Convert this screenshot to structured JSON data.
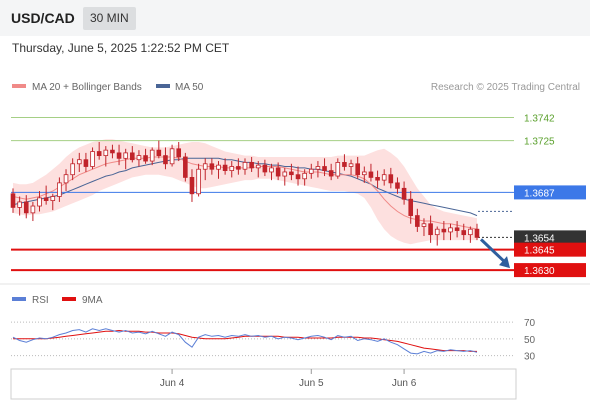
{
  "header": {
    "symbol": "USD/CAD",
    "timeframe": "30 MIN",
    "timestamp": "Thursday, June 5, 2025 1:22:52 PM CET"
  },
  "legend": {
    "ma20": "MA 20 + Bollinger Bands",
    "ma50": "MA 50",
    "credit": "Research © 2025 Trading Central"
  },
  "rsi_legend": {
    "rsi": "RSI",
    "ma9": "9MA"
  },
  "colors": {
    "candle": "#c0232a",
    "ma20": "#f08a88",
    "band": "#fde0df",
    "ma50": "#4a6596",
    "green_level": "#a5cf85",
    "blue_level": "#3c78e8",
    "red_level": "#e01010",
    "rsi": "#5b7fd6",
    "ma9": "#e01010",
    "arrow": "#2f5f9e"
  },
  "chart_data": {
    "type": "candlestick",
    "candles": [
      [
        1.3686,
        1.369,
        1.3672,
        1.3676
      ],
      [
        1.3676,
        1.3684,
        1.367,
        1.368
      ],
      [
        1.368,
        1.3685,
        1.3668,
        1.3672
      ],
      [
        1.3672,
        1.368,
        1.3666,
        1.3677
      ],
      [
        1.3677,
        1.3688,
        1.3673,
        1.3683
      ],
      [
        1.3683,
        1.3692,
        1.3678,
        1.3681
      ],
      [
        1.3681,
        1.3686,
        1.3674,
        1.3684
      ],
      [
        1.3684,
        1.3698,
        1.368,
        1.3694
      ],
      [
        1.3694,
        1.3704,
        1.3688,
        1.37
      ],
      [
        1.37,
        1.3712,
        1.3696,
        1.3708
      ],
      [
        1.3708,
        1.3716,
        1.3702,
        1.3711
      ],
      [
        1.3711,
        1.3716,
        1.3702,
        1.3706
      ],
      [
        1.3706,
        1.372,
        1.3704,
        1.3717
      ],
      [
        1.3717,
        1.3724,
        1.3711,
        1.3714
      ],
      [
        1.3714,
        1.3721,
        1.3706,
        1.3718
      ],
      [
        1.3718,
        1.3722,
        1.3712,
        1.3716
      ],
      [
        1.3716,
        1.3722,
        1.3707,
        1.3712
      ],
      [
        1.3712,
        1.3719,
        1.3704,
        1.3716
      ],
      [
        1.3716,
        1.3721,
        1.3709,
        1.3711
      ],
      [
        1.3711,
        1.3718,
        1.3706,
        1.3714
      ],
      [
        1.3714,
        1.3719,
        1.3708,
        1.371
      ],
      [
        1.371,
        1.372,
        1.3707,
        1.3718
      ],
      [
        1.3718,
        1.3725,
        1.3712,
        1.3714
      ],
      [
        1.3714,
        1.372,
        1.3704,
        1.3708
      ],
      [
        1.3708,
        1.3722,
        1.3706,
        1.3719
      ],
      [
        1.3719,
        1.3724,
        1.371,
        1.3713
      ],
      [
        1.3713,
        1.3716,
        1.3695,
        1.3698
      ],
      [
        1.3698,
        1.3704,
        1.368,
        1.3686
      ],
      [
        1.3686,
        1.3708,
        1.3684,
        1.3704
      ],
      [
        1.3704,
        1.3712,
        1.3696,
        1.3708
      ],
      [
        1.3708,
        1.3712,
        1.37,
        1.3704
      ],
      [
        1.3704,
        1.371,
        1.3697,
        1.3707
      ],
      [
        1.3707,
        1.3712,
        1.37,
        1.3703
      ],
      [
        1.3703,
        1.371,
        1.3698,
        1.3706
      ],
      [
        1.3706,
        1.3712,
        1.37,
        1.3704
      ],
      [
        1.3704,
        1.3712,
        1.37,
        1.3709
      ],
      [
        1.3709,
        1.3713,
        1.3702,
        1.3705
      ],
      [
        1.3705,
        1.371,
        1.3698,
        1.3707
      ],
      [
        1.3707,
        1.3711,
        1.3699,
        1.3702
      ],
      [
        1.3702,
        1.3708,
        1.3696,
        1.3705
      ],
      [
        1.3705,
        1.3709,
        1.3696,
        1.3699
      ],
      [
        1.3699,
        1.3705,
        1.3692,
        1.3702
      ],
      [
        1.3702,
        1.3708,
        1.3696,
        1.37
      ],
      [
        1.37,
        1.3706,
        1.3692,
        1.3697
      ],
      [
        1.3697,
        1.3704,
        1.3692,
        1.3701
      ],
      [
        1.3701,
        1.3708,
        1.3697,
        1.3704
      ],
      [
        1.3704,
        1.371,
        1.3698,
        1.3706
      ],
      [
        1.3706,
        1.3712,
        1.3699,
        1.3703
      ],
      [
        1.3703,
        1.3708,
        1.3696,
        1.3699
      ],
      [
        1.3699,
        1.3712,
        1.3697,
        1.3709
      ],
      [
        1.3709,
        1.3715,
        1.3703,
        1.3706
      ],
      [
        1.3706,
        1.3711,
        1.37,
        1.3708
      ],
      [
        1.3708,
        1.3713,
        1.3697,
        1.37
      ],
      [
        1.37,
        1.3706,
        1.3694,
        1.3702
      ],
      [
        1.3702,
        1.3708,
        1.3695,
        1.3698
      ],
      [
        1.3698,
        1.3703,
        1.369,
        1.3696
      ],
      [
        1.3696,
        1.3704,
        1.3692,
        1.37
      ],
      [
        1.37,
        1.3705,
        1.369,
        1.3694
      ],
      [
        1.3694,
        1.3698,
        1.3686,
        1.369
      ],
      [
        1.369,
        1.3695,
        1.3678,
        1.3682
      ],
      [
        1.3682,
        1.3688,
        1.3664,
        1.367
      ],
      [
        1.367,
        1.3675,
        1.3658,
        1.3662
      ],
      [
        1.3662,
        1.3668,
        1.3655,
        1.3664
      ],
      [
        1.3664,
        1.367,
        1.365,
        1.3656
      ],
      [
        1.3656,
        1.3662,
        1.3648,
        1.366
      ],
      [
        1.366,
        1.3666,
        1.3652,
        1.3658
      ],
      [
        1.3658,
        1.3664,
        1.3652,
        1.3661
      ],
      [
        1.3661,
        1.3666,
        1.3654,
        1.3659
      ],
      [
        1.3659,
        1.3664,
        1.3652,
        1.3656
      ],
      [
        1.3656,
        1.3662,
        1.365,
        1.366
      ],
      [
        1.366,
        1.3664,
        1.3652,
        1.3654
      ]
    ],
    "ma20": [
      1.3684,
      1.3683,
      1.3682,
      1.3683,
      1.3684,
      1.3686,
      1.3688,
      1.3691,
      1.3694,
      1.3697,
      1.37,
      1.3702,
      1.3704,
      1.3706,
      1.3708,
      1.3709,
      1.371,
      1.3711,
      1.3712,
      1.3712,
      1.3712,
      1.3713,
      1.3713,
      1.3713,
      1.3713,
      1.3712,
      1.371,
      1.3708,
      1.3707,
      1.3706,
      1.3706,
      1.3706,
      1.3705,
      1.3705,
      1.3705,
      1.3705,
      1.3705,
      1.3706,
      1.3706,
      1.3706,
      1.3706,
      1.3705,
      1.3704,
      1.3703,
      1.3702,
      1.3702,
      1.3702,
      1.3701,
      1.37,
      1.37,
      1.37,
      1.37,
      1.3699,
      1.3697,
      1.3693,
      1.3688,
      1.3682,
      1.3677,
      1.3673,
      1.367,
      1.3668,
      1.3667,
      1.3666,
      1.3666,
      1.3665,
      1.3664,
      1.3664,
      1.3663,
      1.3662,
      1.3661,
      1.366
    ],
    "band_upper": [
      1.3694,
      1.3693,
      1.3693,
      1.3694,
      1.3697,
      1.37,
      1.3704,
      1.3708,
      1.3713,
      1.3717,
      1.372,
      1.3722,
      1.3724,
      1.3725,
      1.3726,
      1.3726,
      1.3725,
      1.3724,
      1.3723,
      1.3722,
      1.3721,
      1.372,
      1.372,
      1.372,
      1.3721,
      1.3722,
      1.3723,
      1.3724,
      1.3724,
      1.3723,
      1.3721,
      1.3719,
      1.3717,
      1.3716,
      1.3715,
      1.3714,
      1.3714,
      1.3713,
      1.3713,
      1.3713,
      1.3713,
      1.3713,
      1.3713,
      1.3713,
      1.3713,
      1.3713,
      1.3713,
      1.3713,
      1.3713,
      1.3714,
      1.3714,
      1.3714,
      1.3714,
      1.3714,
      1.3716,
      1.3718,
      1.3719,
      1.3716,
      1.3712,
      1.3706,
      1.3698,
      1.369,
      1.3684,
      1.3678,
      1.3675,
      1.3673,
      1.3672,
      1.3671,
      1.367,
      1.3669,
      1.3668
    ],
    "band_lower": [
      1.3672,
      1.3671,
      1.367,
      1.3671,
      1.3671,
      1.3672,
      1.3673,
      1.3675,
      1.3677,
      1.3679,
      1.3681,
      1.3683,
      1.3685,
      1.3688,
      1.369,
      1.3692,
      1.3694,
      1.3696,
      1.3698,
      1.3699,
      1.37,
      1.37,
      1.37,
      1.3699,
      1.3698,
      1.3696,
      1.3694,
      1.3692,
      1.369,
      1.369,
      1.3691,
      1.3692,
      1.3693,
      1.3694,
      1.3695,
      1.3696,
      1.3696,
      1.3697,
      1.3697,
      1.3697,
      1.3696,
      1.3695,
      1.3694,
      1.3693,
      1.3692,
      1.3691,
      1.369,
      1.3689,
      1.3688,
      1.3688,
      1.3688,
      1.3687,
      1.3686,
      1.3683,
      1.3676,
      1.3667,
      1.366,
      1.3655,
      1.3652,
      1.365,
      1.3649,
      1.365,
      1.3651,
      1.3652,
      1.3652,
      1.3652,
      1.3652,
      1.3652,
      1.3652,
      1.3652,
      1.3652
    ],
    "ma50": [
      1.3678,
      1.3679,
      1.368,
      1.3681,
      1.3682,
      1.3683,
      1.3684,
      1.3685,
      1.3687,
      1.3689,
      1.3691,
      1.3693,
      1.3695,
      1.3697,
      1.3699,
      1.37,
      1.3702,
      1.3703,
      1.3705,
      1.3706,
      1.3707,
      1.3708,
      1.3709,
      1.371,
      1.3711,
      1.3711,
      1.3712,
      1.3712,
      1.3712,
      1.3712,
      1.3712,
      1.3712,
      1.3711,
      1.3711,
      1.371,
      1.3709,
      1.3709,
      1.3708,
      1.3708,
      1.3707,
      1.3707,
      1.3706,
      1.3706,
      1.3705,
      1.3705,
      1.3704,
      1.3704,
      1.3703,
      1.3702,
      1.3701,
      1.37,
      1.3699,
      1.3697,
      1.3695,
      1.3693,
      1.369,
      1.3688,
      1.3686,
      1.3684,
      1.3682,
      1.3681,
      1.368,
      1.3679,
      1.3678,
      1.3677,
      1.3676,
      1.3675,
      1.3674,
      1.3673,
      1.3672,
      1.367
    ],
    "ylim": [
      1.3622,
      1.3757
    ],
    "levels": [
      {
        "value": 1.3742,
        "label": "1.3742",
        "kind": "green"
      },
      {
        "value": 1.3725,
        "label": "1.3725",
        "kind": "green"
      },
      {
        "value": 1.3687,
        "label": "1.3687",
        "kind": "blue"
      },
      {
        "value": 1.3654,
        "label": "1.3654",
        "kind": "price"
      },
      {
        "value": 1.3645,
        "label": "1.3645",
        "kind": "red"
      },
      {
        "value": 1.363,
        "label": "1.3630",
        "kind": "red"
      }
    ],
    "forecast_arrow": {
      "from": 1.3654,
      "to": 1.363
    },
    "rsi_ylim": [
      20,
      82
    ],
    "rsi_ticks": [
      70,
      50,
      30
    ],
    "rsi": [
      52,
      48,
      46,
      49,
      51,
      50,
      52,
      55,
      57,
      60,
      61,
      58,
      62,
      60,
      62,
      60,
      58,
      60,
      57,
      58,
      56,
      59,
      56,
      53,
      58,
      55,
      46,
      40,
      52,
      55,
      53,
      54,
      52,
      54,
      53,
      55,
      53,
      54,
      52,
      53,
      50,
      52,
      51,
      49,
      51,
      53,
      54,
      52,
      49,
      54,
      52,
      53,
      48,
      50,
      49,
      47,
      50,
      46,
      43,
      38,
      33,
      32,
      35,
      33,
      36,
      35,
      37,
      36,
      35,
      36,
      34
    ],
    "ma9": [
      50,
      50,
      50,
      50,
      50,
      50,
      51,
      52,
      53,
      54,
      55,
      56,
      57,
      58,
      59,
      59,
      60,
      59,
      59,
      59,
      58,
      58,
      57,
      57,
      57,
      56,
      54,
      52,
      51,
      50,
      50,
      50,
      50,
      51,
      52,
      53,
      53,
      53,
      53,
      53,
      53,
      52,
      52,
      52,
      51,
      51,
      51,
      51,
      51,
      52,
      52,
      52,
      52,
      51,
      51,
      50,
      49,
      48,
      47,
      45,
      43,
      41,
      39,
      38,
      37,
      36,
      36,
      36,
      36,
      35,
      35
    ],
    "x_labels": [
      {
        "label": "Jun 4",
        "index": 24
      },
      {
        "label": "Jun 5",
        "index": 45
      },
      {
        "label": "Jun 6",
        "index": 59
      }
    ]
  }
}
